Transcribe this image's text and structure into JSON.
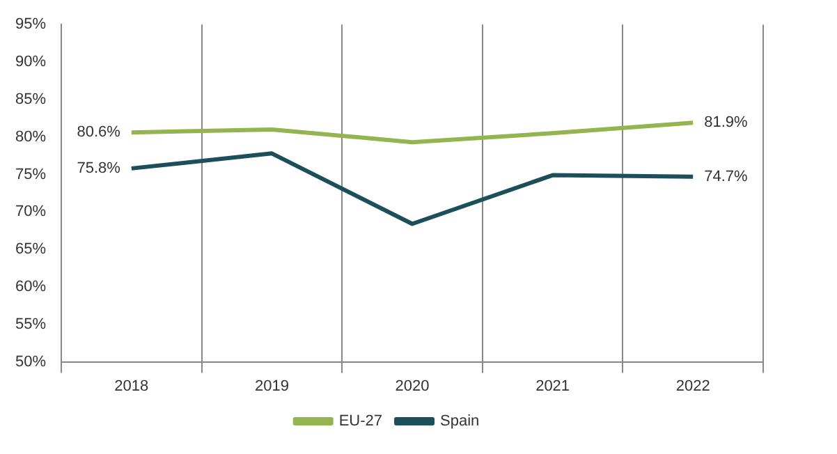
{
  "chart_data": {
    "type": "line",
    "categories": [
      "2018",
      "2019",
      "2020",
      "2021",
      "2022"
    ],
    "series": [
      {
        "name": "EU-27",
        "color": "#92b550",
        "values": [
          80.6,
          81.0,
          79.3,
          80.5,
          81.9
        ],
        "value_labels": [
          "80.6%",
          null,
          null,
          null,
          "81.9%"
        ]
      },
      {
        "name": "Spain",
        "color": "#1d4f5a",
        "values": [
          75.8,
          77.8,
          68.4,
          74.9,
          74.7
        ],
        "value_labels": [
          "75.8%",
          null,
          null,
          null,
          "74.7%"
        ]
      }
    ],
    "ylim": [
      50,
      95
    ],
    "yticks": [
      {
        "value": 50,
        "label": "50%"
      },
      {
        "value": 55,
        "label": "55%"
      },
      {
        "value": 60,
        "label": "60%"
      },
      {
        "value": 65,
        "label": "65%"
      },
      {
        "value": 70,
        "label": "70%"
      },
      {
        "value": 75,
        "label": "75%"
      },
      {
        "value": 80,
        "label": "80%"
      },
      {
        "value": 85,
        "label": "85%"
      },
      {
        "value": 90,
        "label": "90%"
      },
      {
        "value": 95,
        "label": "95%"
      }
    ],
    "grid": "x",
    "legend": "bottom",
    "marker": "none",
    "line_style": "solid"
  }
}
